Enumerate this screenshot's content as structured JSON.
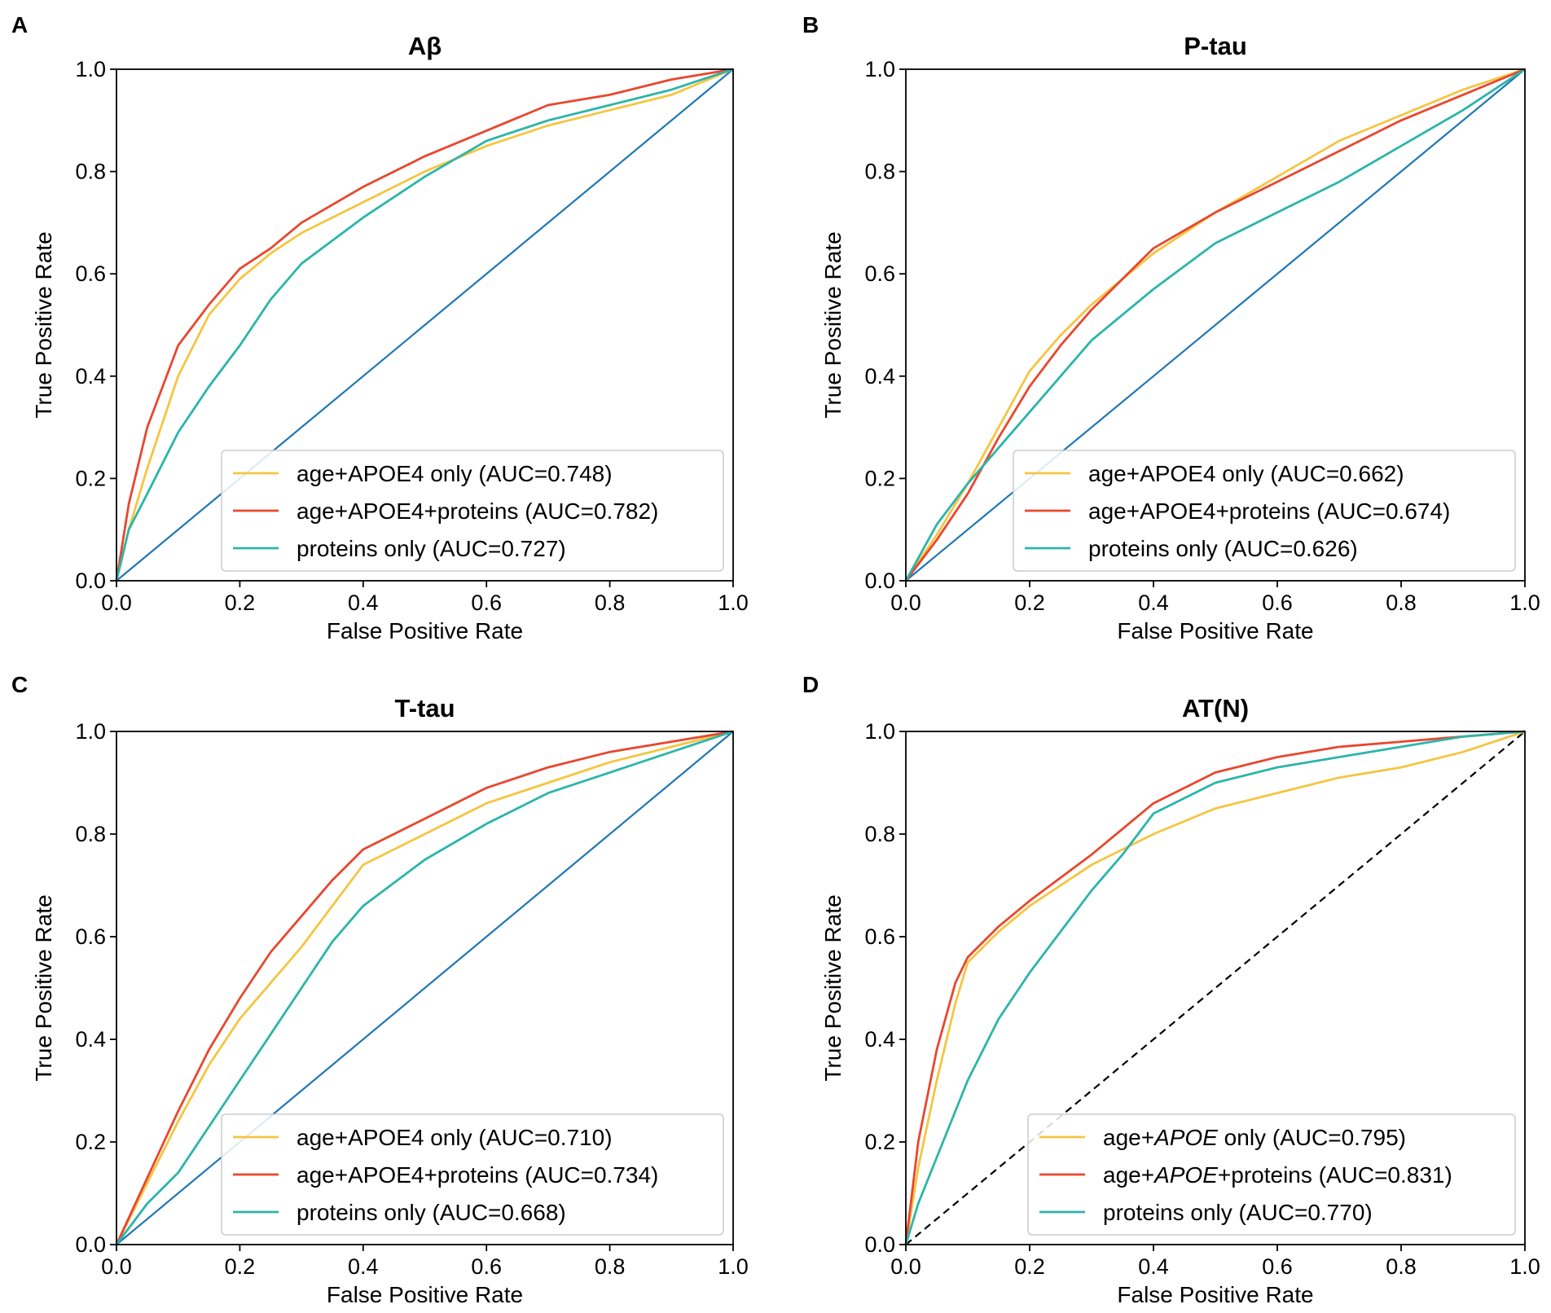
{
  "figure": {
    "panels": [
      "A",
      "B",
      "C",
      "D"
    ]
  },
  "chart_data": [
    {
      "panel": "A",
      "type": "line",
      "title": "Aβ",
      "xlabel": "False Positive Rate",
      "ylabel": "True Positive Rate",
      "xlim": [
        0,
        1
      ],
      "ylim": [
        0,
        1
      ],
      "xticks": [
        "0.0",
        "0.2",
        "0.4",
        "0.6",
        "0.8",
        "1.0"
      ],
      "yticks": [
        "0.0",
        "0.2",
        "0.4",
        "0.6",
        "0.8",
        "1.0"
      ],
      "legend_position": "lower-right",
      "diagonal": {
        "color": "#1f77b4",
        "style": "solid"
      },
      "series": [
        {
          "name": "age+APOE4 only (AUC=0.748)",
          "color": "#f5c542",
          "x": [
            0,
            0.02,
            0.05,
            0.1,
            0.15,
            0.2,
            0.25,
            0.3,
            0.4,
            0.5,
            0.6,
            0.7,
            0.8,
            0.9,
            1.0
          ],
          "y": [
            0,
            0.1,
            0.22,
            0.4,
            0.52,
            0.59,
            0.64,
            0.68,
            0.74,
            0.8,
            0.85,
            0.89,
            0.92,
            0.95,
            1.0
          ]
        },
        {
          "name": "age+APOE4+proteins (AUC=0.782)",
          "color": "#e8472e",
          "x": [
            0,
            0.02,
            0.05,
            0.1,
            0.15,
            0.2,
            0.25,
            0.3,
            0.4,
            0.5,
            0.6,
            0.7,
            0.8,
            0.9,
            1.0
          ],
          "y": [
            0,
            0.15,
            0.3,
            0.46,
            0.54,
            0.61,
            0.65,
            0.7,
            0.77,
            0.83,
            0.88,
            0.93,
            0.95,
            0.98,
            1.0
          ]
        },
        {
          "name": "proteins only (AUC=0.727)",
          "color": "#2bb5aa",
          "x": [
            0,
            0.02,
            0.05,
            0.1,
            0.15,
            0.2,
            0.25,
            0.3,
            0.4,
            0.5,
            0.6,
            0.7,
            0.8,
            0.9,
            1.0
          ],
          "y": [
            0,
            0.1,
            0.17,
            0.29,
            0.38,
            0.46,
            0.55,
            0.62,
            0.71,
            0.79,
            0.86,
            0.9,
            0.93,
            0.96,
            1.0
          ]
        }
      ]
    },
    {
      "panel": "B",
      "type": "line",
      "title": "P-tau",
      "xlabel": "False Positive Rate",
      "ylabel": "True Positive Rate",
      "xlim": [
        0,
        1
      ],
      "ylim": [
        0,
        1
      ],
      "xticks": [
        "0.0",
        "0.2",
        "0.4",
        "0.6",
        "0.8",
        "1.0"
      ],
      "yticks": [
        "0.0",
        "0.2",
        "0.4",
        "0.6",
        "0.8",
        "1.0"
      ],
      "legend_position": "lower-right",
      "diagonal": {
        "color": "#1f77b4",
        "style": "solid"
      },
      "series": [
        {
          "name": "age+APOE4 only (AUC=0.662)",
          "color": "#f5c542",
          "x": [
            0,
            0.05,
            0.1,
            0.15,
            0.2,
            0.25,
            0.3,
            0.4,
            0.5,
            0.6,
            0.7,
            0.8,
            0.9,
            1.0
          ],
          "y": [
            0,
            0.09,
            0.19,
            0.3,
            0.41,
            0.48,
            0.54,
            0.64,
            0.72,
            0.79,
            0.86,
            0.91,
            0.96,
            1.0
          ]
        },
        {
          "name": "age+APOE4+proteins (AUC=0.674)",
          "color": "#e8472e",
          "x": [
            0,
            0.05,
            0.1,
            0.15,
            0.2,
            0.25,
            0.3,
            0.4,
            0.5,
            0.6,
            0.7,
            0.8,
            0.9,
            1.0
          ],
          "y": [
            0,
            0.08,
            0.17,
            0.28,
            0.38,
            0.46,
            0.53,
            0.65,
            0.72,
            0.78,
            0.84,
            0.9,
            0.95,
            1.0
          ]
        },
        {
          "name": "proteins only (AUC=0.626)",
          "color": "#2bb5aa",
          "x": [
            0,
            0.05,
            0.1,
            0.15,
            0.2,
            0.25,
            0.3,
            0.4,
            0.5,
            0.6,
            0.7,
            0.8,
            0.9,
            1.0
          ],
          "y": [
            0,
            0.11,
            0.19,
            0.26,
            0.33,
            0.4,
            0.47,
            0.57,
            0.66,
            0.72,
            0.78,
            0.85,
            0.92,
            1.0
          ]
        }
      ]
    },
    {
      "panel": "C",
      "type": "line",
      "title": "T-tau",
      "xlabel": "False Positive Rate",
      "ylabel": "True Positive Rate",
      "xlim": [
        0,
        1
      ],
      "ylim": [
        0,
        1
      ],
      "xticks": [
        "0.0",
        "0.2",
        "0.4",
        "0.6",
        "0.8",
        "1.0"
      ],
      "yticks": [
        "0.0",
        "0.2",
        "0.4",
        "0.6",
        "0.8",
        "1.0"
      ],
      "legend_position": "lower-right",
      "diagonal": {
        "color": "#1f77b4",
        "style": "solid"
      },
      "series": [
        {
          "name": "age+APOE4 only (AUC=0.710)",
          "color": "#f5c542",
          "x": [
            0,
            0.05,
            0.1,
            0.15,
            0.2,
            0.25,
            0.3,
            0.35,
            0.4,
            0.5,
            0.6,
            0.7,
            0.8,
            0.9,
            1.0
          ],
          "y": [
            0,
            0.12,
            0.24,
            0.35,
            0.44,
            0.51,
            0.58,
            0.66,
            0.74,
            0.8,
            0.86,
            0.9,
            0.94,
            0.97,
            1.0
          ]
        },
        {
          "name": "age+APOE4+proteins (AUC=0.734)",
          "color": "#e8472e",
          "x": [
            0,
            0.05,
            0.1,
            0.15,
            0.2,
            0.25,
            0.3,
            0.35,
            0.4,
            0.5,
            0.6,
            0.7,
            0.8,
            0.9,
            1.0
          ],
          "y": [
            0,
            0.13,
            0.26,
            0.38,
            0.48,
            0.57,
            0.64,
            0.71,
            0.77,
            0.83,
            0.89,
            0.93,
            0.96,
            0.98,
            1.0
          ]
        },
        {
          "name": "proteins only (AUC=0.668)",
          "color": "#2bb5aa",
          "x": [
            0,
            0.05,
            0.1,
            0.15,
            0.2,
            0.25,
            0.3,
            0.35,
            0.4,
            0.5,
            0.6,
            0.7,
            0.8,
            0.9,
            1.0
          ],
          "y": [
            0,
            0.08,
            0.14,
            0.23,
            0.32,
            0.41,
            0.5,
            0.59,
            0.66,
            0.75,
            0.82,
            0.88,
            0.92,
            0.96,
            1.0
          ]
        }
      ]
    },
    {
      "panel": "D",
      "type": "line",
      "title": "AT(N)",
      "xlabel": "False Positive Rate",
      "ylabel": "True Positive Rate",
      "xlim": [
        0,
        1
      ],
      "ylim": [
        0,
        1
      ],
      "xticks": [
        "0.0",
        "0.2",
        "0.4",
        "0.6",
        "0.8",
        "1.0"
      ],
      "yticks": [
        "0.0",
        "0.2",
        "0.4",
        "0.6",
        "0.8",
        "1.0"
      ],
      "legend_position": "lower-right",
      "diagonal": {
        "color": "#000000",
        "style": "dashed"
      },
      "series": [
        {
          "name": "age+APOE only (AUC=0.795)",
          "label_prefix": "age+",
          "label_italic": "APOE",
          "label_suffix": " only (AUC=0.795)",
          "color": "#f5c542",
          "x": [
            0,
            0.02,
            0.05,
            0.08,
            0.1,
            0.15,
            0.2,
            0.3,
            0.4,
            0.5,
            0.6,
            0.7,
            0.8,
            0.9,
            1.0
          ],
          "y": [
            0,
            0.15,
            0.32,
            0.47,
            0.55,
            0.61,
            0.66,
            0.74,
            0.8,
            0.85,
            0.88,
            0.91,
            0.93,
            0.96,
            1.0
          ]
        },
        {
          "name": "age+APOE+proteins (AUC=0.831)",
          "label_prefix": "age+",
          "label_italic": "APOE",
          "label_suffix": "+proteins (AUC=0.831)",
          "color": "#e8472e",
          "x": [
            0,
            0.02,
            0.05,
            0.08,
            0.1,
            0.15,
            0.2,
            0.3,
            0.4,
            0.5,
            0.6,
            0.7,
            0.8,
            0.9,
            1.0
          ],
          "y": [
            0,
            0.2,
            0.38,
            0.51,
            0.56,
            0.62,
            0.67,
            0.76,
            0.86,
            0.92,
            0.95,
            0.97,
            0.98,
            0.99,
            1.0
          ]
        },
        {
          "name": "proteins only (AUC=0.770)",
          "color": "#2bb5aa",
          "x": [
            0,
            0.02,
            0.05,
            0.1,
            0.15,
            0.2,
            0.25,
            0.3,
            0.35,
            0.4,
            0.5,
            0.6,
            0.7,
            0.8,
            0.9,
            1.0
          ],
          "y": [
            0,
            0.08,
            0.17,
            0.32,
            0.44,
            0.53,
            0.61,
            0.69,
            0.76,
            0.84,
            0.9,
            0.93,
            0.95,
            0.97,
            0.99,
            1.0
          ]
        }
      ]
    }
  ]
}
